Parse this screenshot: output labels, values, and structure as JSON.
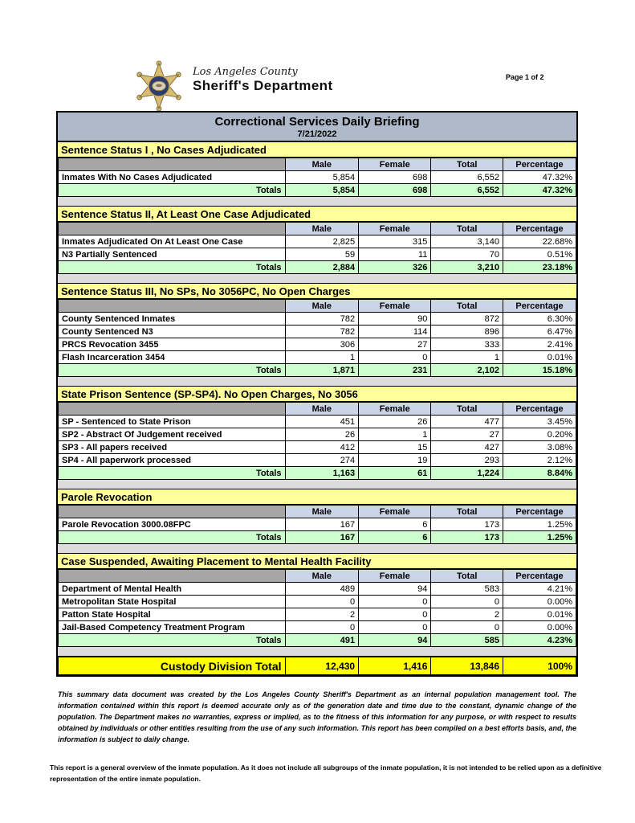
{
  "page_label": "Page 1 of 2",
  "letterhead": {
    "county_line": "Los Angeles County",
    "dept_line": "Sheriff's Department"
  },
  "title": {
    "main": "Correctional Services Daily Briefing",
    "date": "7/21/2022"
  },
  "columns": [
    "Male",
    "Female",
    "Total",
    "Percentage"
  ],
  "totals_label": "Totals",
  "sections": [
    {
      "title": "Sentence Status I , No Cases Adjudicated",
      "rows": [
        {
          "label": "Inmates With No Cases Adjudicated",
          "male": "5,854",
          "female": "698",
          "total": "6,552",
          "pct": "47.32%"
        }
      ],
      "totals": {
        "male": "5,854",
        "female": "698",
        "total": "6,552",
        "pct": "47.32%"
      }
    },
    {
      "title": "Sentence Status II, At Least One Case Adjudicated",
      "rows": [
        {
          "label": "Inmates Adjudicated On At Least One Case",
          "male": "2,825",
          "female": "315",
          "total": "3,140",
          "pct": "22.68%"
        },
        {
          "label": "N3 Partially Sentenced",
          "male": "59",
          "female": "11",
          "total": "70",
          "pct": "0.51%"
        }
      ],
      "totals": {
        "male": "2,884",
        "female": "326",
        "total": "3,210",
        "pct": "23.18%"
      }
    },
    {
      "title": "Sentence Status III, No SPs, No 3056PC, No Open Charges",
      "rows": [
        {
          "label": "County Sentenced Inmates",
          "male": "782",
          "female": "90",
          "total": "872",
          "pct": "6.30%"
        },
        {
          "label": "County Sentenced N3",
          "male": "782",
          "female": "114",
          "total": "896",
          "pct": "6.47%"
        },
        {
          "label": "PRCS Revocation 3455",
          "male": "306",
          "female": "27",
          "total": "333",
          "pct": "2.41%"
        },
        {
          "label": "Flash Incarceration 3454",
          "male": "1",
          "female": "0",
          "total": "1",
          "pct": "0.01%"
        }
      ],
      "totals": {
        "male": "1,871",
        "female": "231",
        "total": "2,102",
        "pct": "15.18%"
      }
    },
    {
      "title": "State Prison Sentence (SP-SP4). No Open Charges, No 3056",
      "rows": [
        {
          "label": "SP - Sentenced to State Prison",
          "male": "451",
          "female": "26",
          "total": "477",
          "pct": "3.45%"
        },
        {
          "label": "SP2 - Abstract Of Judgement received",
          "male": "26",
          "female": "1",
          "total": "27",
          "pct": "0.20%"
        },
        {
          "label": "SP3 - All papers received",
          "male": "412",
          "female": "15",
          "total": "427",
          "pct": "3.08%"
        },
        {
          "label": "SP4 - All paperwork processed",
          "male": "274",
          "female": "19",
          "total": "293",
          "pct": "2.12%"
        }
      ],
      "totals": {
        "male": "1,163",
        "female": "61",
        "total": "1,224",
        "pct": "8.84%"
      }
    },
    {
      "title": "Parole Revocation",
      "rows": [
        {
          "label": "Parole Revocation 3000.08FPC",
          "male": "167",
          "female": "6",
          "total": "173",
          "pct": "1.25%"
        }
      ],
      "totals": {
        "male": "167",
        "female": "6",
        "total": "173",
        "pct": "1.25%"
      }
    },
    {
      "title": "Case Suspended, Awaiting Placement to Mental Health Facility",
      "rows": [
        {
          "label": "Department of Mental Health",
          "male": "489",
          "female": "94",
          "total": "583",
          "pct": "4.21%"
        },
        {
          "label": "Metropolitan State Hospital",
          "male": "0",
          "female": "0",
          "total": "0",
          "pct": "0.00%"
        },
        {
          "label": "Patton State Hospital",
          "male": "2",
          "female": "0",
          "total": "2",
          "pct": "0.01%"
        },
        {
          "label": "Jail-Based Competency Treatment Program",
          "male": "0",
          "female": "0",
          "total": "0",
          "pct": "0.00%"
        }
      ],
      "totals": {
        "male": "491",
        "female": "94",
        "total": "585",
        "pct": "4.23%"
      }
    }
  ],
  "grand_total": {
    "label": "Custody Division Total",
    "male": "12,430",
    "female": "1,416",
    "total": "13,846",
    "pct": "100%"
  },
  "footnotes": {
    "disclaimer": "This summary data document was created by the Los Angeles County Sheriff's Department as an internal population management tool.  The information contained within this report is deemed accurate only as of the generation date and time due to the constant, dynamic change of the population.  The Department makes no warranties, express or implied, as to the fitness of this information for any purpose, or with respect to results obtained by individuals or other entities resulting from the use of any such information.  This report has been compiled on a best efforts basis, and, the information is subject to daily change.",
    "overview": "This report is a general overview of the inmate population.  As it does not include all subgroups of the inmate population, it is not intended to be relied upon as a definitive representation of the entire inmate population."
  },
  "colors": {
    "band": "#aeb9c9",
    "section_header": "#ffff99",
    "column_header": "#ccd5e8",
    "blank_header": "#a6a6a6",
    "totals_row": "#ccffcc",
    "gap": "#dcdcdc",
    "grand_total": "#ffff00"
  }
}
